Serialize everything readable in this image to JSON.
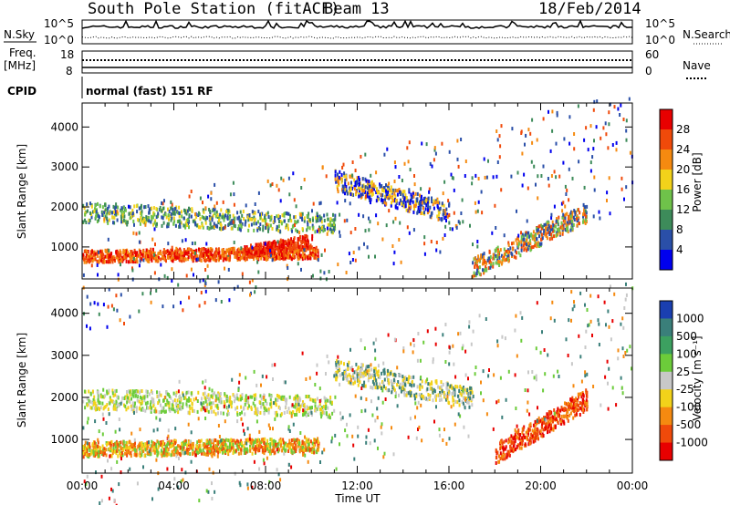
{
  "header": {
    "station": "South Pole Station (fitACF)",
    "beam": "Beam 13",
    "date": "18/Feb/2014"
  },
  "top_panels": {
    "nsky_label": "N.Sky",
    "nsearch_label": "N.Search",
    "noise_tick_high": "10^5",
    "noise_tick_low": "10^0",
    "freq_label": "Freq.",
    "freq_unit": "[MHz]",
    "freq_tick_high": "18",
    "freq_tick_low": "8",
    "nave_label": "Nave",
    "nave_tick_high": "60",
    "nave_tick_low": "0",
    "cpid_label": "CPID",
    "cpid_value": "normal (fast) 151 RF"
  },
  "colors": {
    "power_scale": [
      "#0000ee",
      "#2a4fa8",
      "#3d8b5a",
      "#6fc24a",
      "#f2d21a",
      "#f58a10",
      "#f04a0a",
      "#e80000"
    ],
    "velocity_scale": [
      "#1a3fb0",
      "#3a7f7a",
      "#3ca060",
      "#6ccc3a",
      "#c8c8c8",
      "#f2d21a",
      "#f58a10",
      "#f04a0a",
      "#e80000"
    ]
  },
  "chart_data": [
    {
      "type": "heatmap",
      "name": "power",
      "ylabel": "Slant Range [km]",
      "xlabel": "Time UT",
      "x_ticks": [
        "00:00",
        "04:00",
        "08:00",
        "12:00",
        "16:00",
        "20:00",
        "00:00"
      ],
      "y_ticks": [
        1000,
        2000,
        3000,
        4000
      ],
      "ylim": [
        200,
        4600
      ],
      "colorbar": {
        "label": "Power [dB]",
        "ticks": [
          4,
          8,
          12,
          16,
          20,
          24,
          28
        ]
      }
    },
    {
      "type": "heatmap",
      "name": "velocity",
      "ylabel": "Slant Range [km]",
      "xlabel": "Time UT",
      "x_ticks": [
        "00:00",
        "04:00",
        "08:00",
        "12:00",
        "16:00",
        "20:00",
        "00:00"
      ],
      "y_ticks": [
        1000,
        2000,
        3000,
        4000
      ],
      "ylim": [
        200,
        4600
      ],
      "colorbar": {
        "label": "Velocity [m s⁻¹]",
        "ticks": [
          1000,
          500,
          100,
          25,
          -25,
          -100,
          -500,
          -1000
        ]
      }
    }
  ]
}
